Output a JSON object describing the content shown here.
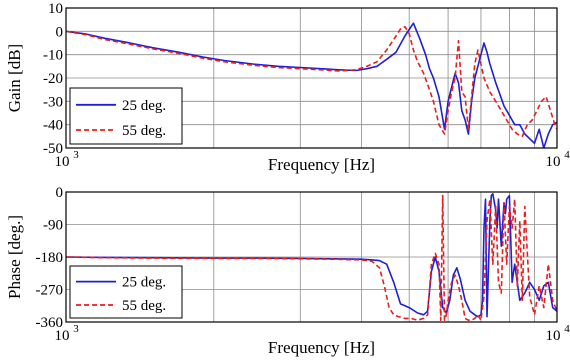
{
  "chart_data": [
    {
      "type": "line",
      "x_scale": "log",
      "xlim": [
        1000,
        10000
      ],
      "ylim": [
        -50,
        10
      ],
      "xlabel": "Frequency [Hz]",
      "ylabel": "Gain [dB]",
      "x_tick_labels": [
        {
          "value": 1000,
          "base": "10",
          "exp": "3"
        },
        {
          "value": 10000,
          "base": "10",
          "exp": "4"
        }
      ],
      "y_ticks": [
        10,
        0,
        -10,
        -20,
        -30,
        -40,
        -50
      ],
      "y_tick_labels": [
        "10",
        "0",
        "-10",
        "-20",
        "-30",
        "-40",
        "-50"
      ],
      "grid": true,
      "legend": "bottom-left",
      "series": [
        {
          "name": "25 deg.",
          "color": "#1f1fd6",
          "dash": "solid",
          "x": [
            1000,
            1100,
            1200,
            1350,
            1500,
            1700,
            1900,
            2100,
            2400,
            2700,
            3000,
            3300,
            3600,
            3900,
            4100,
            4300,
            4500,
            4700,
            4900,
            5100,
            5250,
            5400,
            5500,
            5600,
            5750,
            5900,
            6000,
            6100,
            6200,
            6300,
            6400,
            6500,
            6600,
            6700,
            6800,
            6900,
            7000,
            7100,
            7200,
            7300,
            7400,
            7500,
            7650,
            7800,
            8000,
            8200,
            8400,
            8600,
            8800,
            9000,
            9200,
            9400,
            9600,
            9800,
            10000
          ],
          "y": [
            0,
            -1.2,
            -3,
            -5,
            -7,
            -9,
            -11,
            -12.5,
            -14,
            -15,
            -15.5,
            -16,
            -16.5,
            -16.8,
            -16,
            -15,
            -12,
            -9,
            -2,
            3.5,
            -3,
            -10,
            -16,
            -20,
            -28,
            -42,
            -30,
            -24,
            -18,
            -22,
            -34,
            -38,
            -44,
            -30,
            -20,
            -15,
            -10,
            -5,
            -9,
            -14,
            -18,
            -22,
            -27,
            -32,
            -36,
            -40,
            -40,
            -44,
            -46,
            -48,
            -42,
            -50,
            -44,
            -40,
            -39
          ]
        },
        {
          "name": "55 deg.",
          "color": "#e81e1e",
          "dash": "dashed",
          "x": [
            1000,
            1100,
            1200,
            1350,
            1500,
            1700,
            1900,
            2100,
            2400,
            2700,
            3000,
            3300,
            3600,
            3900,
            4100,
            4300,
            4500,
            4700,
            4800,
            4900,
            5000,
            5100,
            5200,
            5350,
            5500,
            5600,
            5750,
            5900,
            6000,
            6100,
            6200,
            6300,
            6400,
            6500,
            6600,
            6700,
            6800,
            6900,
            7000,
            7100,
            7300,
            7500,
            7700,
            7900,
            8100,
            8300,
            8500,
            8700,
            8900,
            9100,
            9300,
            9500,
            9700,
            9900,
            10000
          ],
          "y": [
            0,
            -1.5,
            -3.5,
            -5.5,
            -7.5,
            -9.5,
            -11.5,
            -13,
            -14.5,
            -15.5,
            -16,
            -16.5,
            -17,
            -16.5,
            -15,
            -13,
            -8,
            -2,
            1,
            2,
            -1,
            -8,
            -13,
            -18,
            -25,
            -30,
            -40,
            -44,
            -34,
            -26,
            -20,
            -4,
            -26,
            -28,
            -42,
            -28,
            -14,
            -8,
            -14,
            -20,
            -26,
            -30,
            -34,
            -38,
            -42,
            -44,
            -45,
            -40,
            -38,
            -34,
            -30,
            -28,
            -34,
            -40,
            -42
          ]
        }
      ]
    },
    {
      "type": "line",
      "x_scale": "log",
      "xlim": [
        1000,
        10000
      ],
      "ylim": [
        -360,
        0
      ],
      "xlabel": "Frequency [Hz]",
      "ylabel": "Phase [deg.]",
      "x_tick_labels": [
        {
          "value": 1000,
          "base": "10",
          "exp": "3"
        },
        {
          "value": 10000,
          "base": "10",
          "exp": "4"
        }
      ],
      "y_ticks": [
        0,
        -90,
        -180,
        -270,
        -360
      ],
      "y_tick_labels": [
        "0",
        "-90",
        "-180",
        "-270",
        "-360"
      ],
      "grid": true,
      "legend": "bottom-left",
      "series": [
        {
          "name": "25 deg.",
          "color": "#1f1fd6",
          "dash": "solid",
          "x": [
            1000,
            1200,
            1500,
            2000,
            2500,
            3000,
            3500,
            4000,
            4200,
            4350,
            4500,
            4650,
            4800,
            5000,
            5200,
            5350,
            5450,
            5550,
            5650,
            5750,
            5850,
            5950,
            6050,
            6150,
            6250,
            6350,
            6500,
            6650,
            6800,
            6900,
            7000,
            7050,
            7100,
            7150,
            7200,
            7300,
            7350,
            7400,
            7500,
            7550,
            7600,
            7700,
            7800,
            7850,
            7900,
            8000,
            8100,
            8200,
            8400,
            8600,
            8800,
            9000,
            9200,
            9400,
            9600,
            9800,
            10000
          ],
          "y": [
            -180,
            -181,
            -182,
            -183,
            -183,
            -184,
            -185,
            -186,
            -188,
            -190,
            -200,
            -250,
            -310,
            -320,
            -335,
            -340,
            -330,
            -220,
            -180,
            -220,
            -320,
            -335,
            -300,
            -230,
            -210,
            -240,
            -300,
            -330,
            -340,
            -345,
            -340,
            -300,
            -100,
            -20,
            -345,
            -80,
            -10,
            -5,
            -50,
            -100,
            -20,
            -150,
            -30,
            -60,
            -20,
            -10,
            -250,
            -200,
            -300,
            -280,
            -250,
            -270,
            -300,
            -260,
            -250,
            -320,
            -330
          ]
        },
        {
          "name": "55 deg.",
          "color": "#e81e1e",
          "dash": "dashed",
          "x": [
            1000,
            1200,
            1500,
            2000,
            2500,
            3000,
            3500,
            4000,
            4200,
            4350,
            4450,
            4550,
            4650,
            4750,
            4900,
            5050,
            5200,
            5350,
            5450,
            5550,
            5650,
            5750,
            5800,
            5850,
            5900,
            5950,
            6000,
            6100,
            6200,
            6300,
            6400,
            6500,
            6600,
            6700,
            6800,
            6900,
            7000,
            7100,
            7200,
            7300,
            7400,
            7500,
            7600,
            7700,
            7800,
            7900,
            8000,
            8100,
            8200,
            8300,
            8400,
            8500,
            8600,
            8800,
            9000,
            9200,
            9400,
            9600,
            9800,
            10000
          ],
          "y": [
            -180,
            -182,
            -183,
            -184,
            -184,
            -185,
            -186,
            -188,
            -192,
            -210,
            -260,
            -320,
            -340,
            -345,
            -350,
            -350,
            -355,
            -350,
            -340,
            -200,
            -170,
            -200,
            -355,
            -10,
            -355,
            -340,
            -300,
            -250,
            -230,
            -260,
            -300,
            -350,
            -355,
            -355,
            -350,
            -340,
            -355,
            -290,
            -80,
            -20,
            -200,
            -40,
            -250,
            -280,
            -30,
            -200,
            -40,
            -100,
            -20,
            -260,
            -80,
            -300,
            -40,
            -290,
            -340,
            -260,
            -320,
            -200,
            -300,
            -330
          ]
        }
      ]
    }
  ]
}
